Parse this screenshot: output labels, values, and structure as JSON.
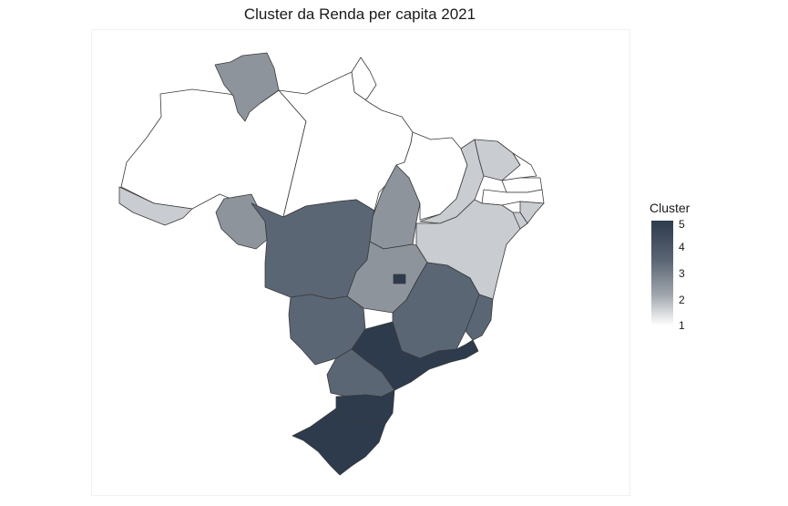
{
  "title": "Cluster da Renda per capita 2021",
  "legend": {
    "title": "Cluster",
    "ticks": [
      "5",
      "4",
      "3",
      "2",
      "1"
    ],
    "colors": {
      "1": "#ffffff",
      "2": "#c9ccd0",
      "3": "#8e949c",
      "4": "#5b6675",
      "5": "#2d3b4d"
    }
  },
  "states": [
    {
      "name": "AC",
      "cluster": 2
    },
    {
      "name": "AM",
      "cluster": 1
    },
    {
      "name": "RR",
      "cluster": 3
    },
    {
      "name": "PA",
      "cluster": 1
    },
    {
      "name": "AP",
      "cluster": 1
    },
    {
      "name": "RO",
      "cluster": 3
    },
    {
      "name": "MT",
      "cluster": 4
    },
    {
      "name": "TO",
      "cluster": 3
    },
    {
      "name": "MA",
      "cluster": 1
    },
    {
      "name": "PI",
      "cluster": 2
    },
    {
      "name": "CE",
      "cluster": 2
    },
    {
      "name": "RN",
      "cluster": 1
    },
    {
      "name": "PB",
      "cluster": 1
    },
    {
      "name": "PE",
      "cluster": 1
    },
    {
      "name": "AL",
      "cluster": 2
    },
    {
      "name": "SE",
      "cluster": 2
    },
    {
      "name": "BA",
      "cluster": 2
    },
    {
      "name": "GO",
      "cluster": 3
    },
    {
      "name": "DF",
      "cluster": 5
    },
    {
      "name": "MS",
      "cluster": 4
    },
    {
      "name": "MG",
      "cluster": 4
    },
    {
      "name": "ES",
      "cluster": 4
    },
    {
      "name": "RJ",
      "cluster": 5
    },
    {
      "name": "SP",
      "cluster": 5
    },
    {
      "name": "PR",
      "cluster": 4
    },
    {
      "name": "SC",
      "cluster": 5
    },
    {
      "name": "RS",
      "cluster": 5
    }
  ]
}
